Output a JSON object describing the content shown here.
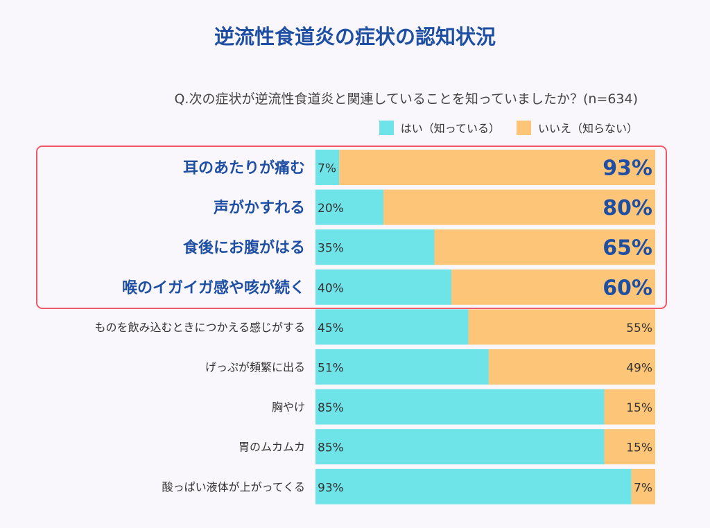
{
  "chart_data": {
    "type": "bar",
    "orientation": "horizontal",
    "stacked": true,
    "title": "逆流性食道炎の症状の認知状況",
    "subtitle": "Q.次の症状が逆流性食道炎と関連していることを知っていましたか？(n=634)",
    "categories": [
      "耳のあたりが痛む",
      "声がかすれる",
      "食後にお腹がはる",
      "喉のイガイガ感や咳が続く",
      "ものを飲み込むときにつかえる感じがする",
      "げっぷが頻繁に出る",
      "胸やけ",
      "胃のムカムカ",
      "酸っぱい液体が上がってくる"
    ],
    "series": [
      {
        "name": "はい（知っている）",
        "values": [
          7,
          20,
          35,
          40,
          45,
          51,
          85,
          85,
          93
        ],
        "color": "#6ee3e8"
      },
      {
        "name": "いいえ（知らない）",
        "values": [
          93,
          80,
          65,
          60,
          55,
          49,
          15,
          15,
          7
        ],
        "color": "#fcc578"
      }
    ],
    "unit": "%",
    "xlim": [
      0,
      100
    ],
    "highlighted_categories": 4,
    "highlight_color": "#f0596a",
    "label_color_highlight": "#1f4fa3",
    "legend_position": "top-right",
    "grid": false
  }
}
